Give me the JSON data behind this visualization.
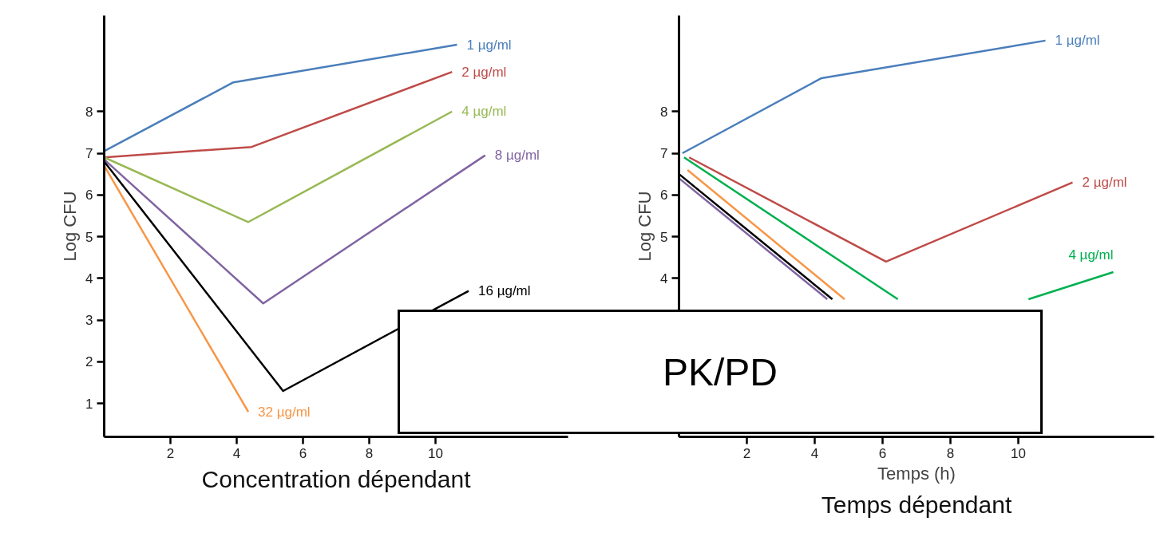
{
  "chart_data": [
    {
      "type": "line",
      "title": "Concentration dépendant",
      "ylabel": "Log CFU",
      "xlim": [
        0,
        14
      ],
      "ylim": [
        0.2,
        10.3
      ],
      "xticks": [
        2,
        4,
        6,
        8,
        10
      ],
      "yticks": [
        1,
        2,
        3,
        4,
        5,
        6,
        7,
        8
      ],
      "grid": false,
      "series": [
        {
          "name": "1 µg/ml",
          "color": "#4a7ebb",
          "x": [
            0,
            3.9,
            10.65
          ],
          "values": [
            7.05,
            8.7,
            9.6
          ]
        },
        {
          "name": "2 µg/ml",
          "color": "#be4b48",
          "x": [
            0,
            4.45,
            10.5
          ],
          "values": [
            6.9,
            7.15,
            8.95
          ]
        },
        {
          "name": "4 µg/ml",
          "color": "#98b954",
          "x": [
            0,
            4.35,
            10.5
          ],
          "values": [
            6.9,
            5.35,
            8.0
          ]
        },
        {
          "name": "8 µg/ml",
          "color": "#8064a2",
          "x": [
            0,
            4.8,
            11.5
          ],
          "values": [
            6.85,
            3.4,
            6.95
          ]
        },
        {
          "name": "16 µg/ml",
          "color": "#000000",
          "x": [
            0,
            5.4,
            11.0
          ],
          "values": [
            6.8,
            1.3,
            3.7
          ]
        },
        {
          "name": "32 µg/ml",
          "color": "#f79646",
          "x": [
            0,
            4.35
          ],
          "values": [
            6.7,
            0.8
          ]
        }
      ]
    },
    {
      "type": "line",
      "title": "Temps dépendant",
      "xlabel": "Temps (h)",
      "ylabel": "Log CFU",
      "xlim": [
        0,
        14
      ],
      "ylim": [
        0.2,
        10.3
      ],
      "xticks": [
        2,
        4,
        6,
        8,
        10
      ],
      "yticks": [
        4,
        5,
        6,
        7,
        8
      ],
      "grid": false,
      "annotations": [
        "PK/PD"
      ],
      "series": [
        {
          "name": "1 µg/ml",
          "color": "#4a7ebb",
          "x": [
            0.1,
            4.2,
            10.8
          ],
          "values": [
            7.0,
            8.8,
            9.7
          ]
        },
        {
          "name": "2 µg/ml",
          "color": "#be4b48",
          "x": [
            0.3,
            6.1,
            11.6
          ],
          "values": [
            6.9,
            4.4,
            6.3
          ]
        },
        {
          "name": "4 µg/ml",
          "color": "#00b050",
          "x": [
            0.15,
            6.45,
            8.0,
            10.3,
            12.8
          ],
          "values": [
            6.9,
            3.5,
            null,
            3.5,
            4.15
          ]
        },
        {
          "color": "#f79646",
          "x": [
            0.25,
            4.88
          ],
          "values": [
            6.6,
            3.5
          ]
        },
        {
          "color": "#000000",
          "x": [
            0.0,
            4.52
          ],
          "values": [
            6.5,
            3.5
          ]
        },
        {
          "color": "#8064a2",
          "x": [
            0.0,
            4.37
          ],
          "values": [
            6.4,
            3.5
          ]
        }
      ]
    }
  ]
}
